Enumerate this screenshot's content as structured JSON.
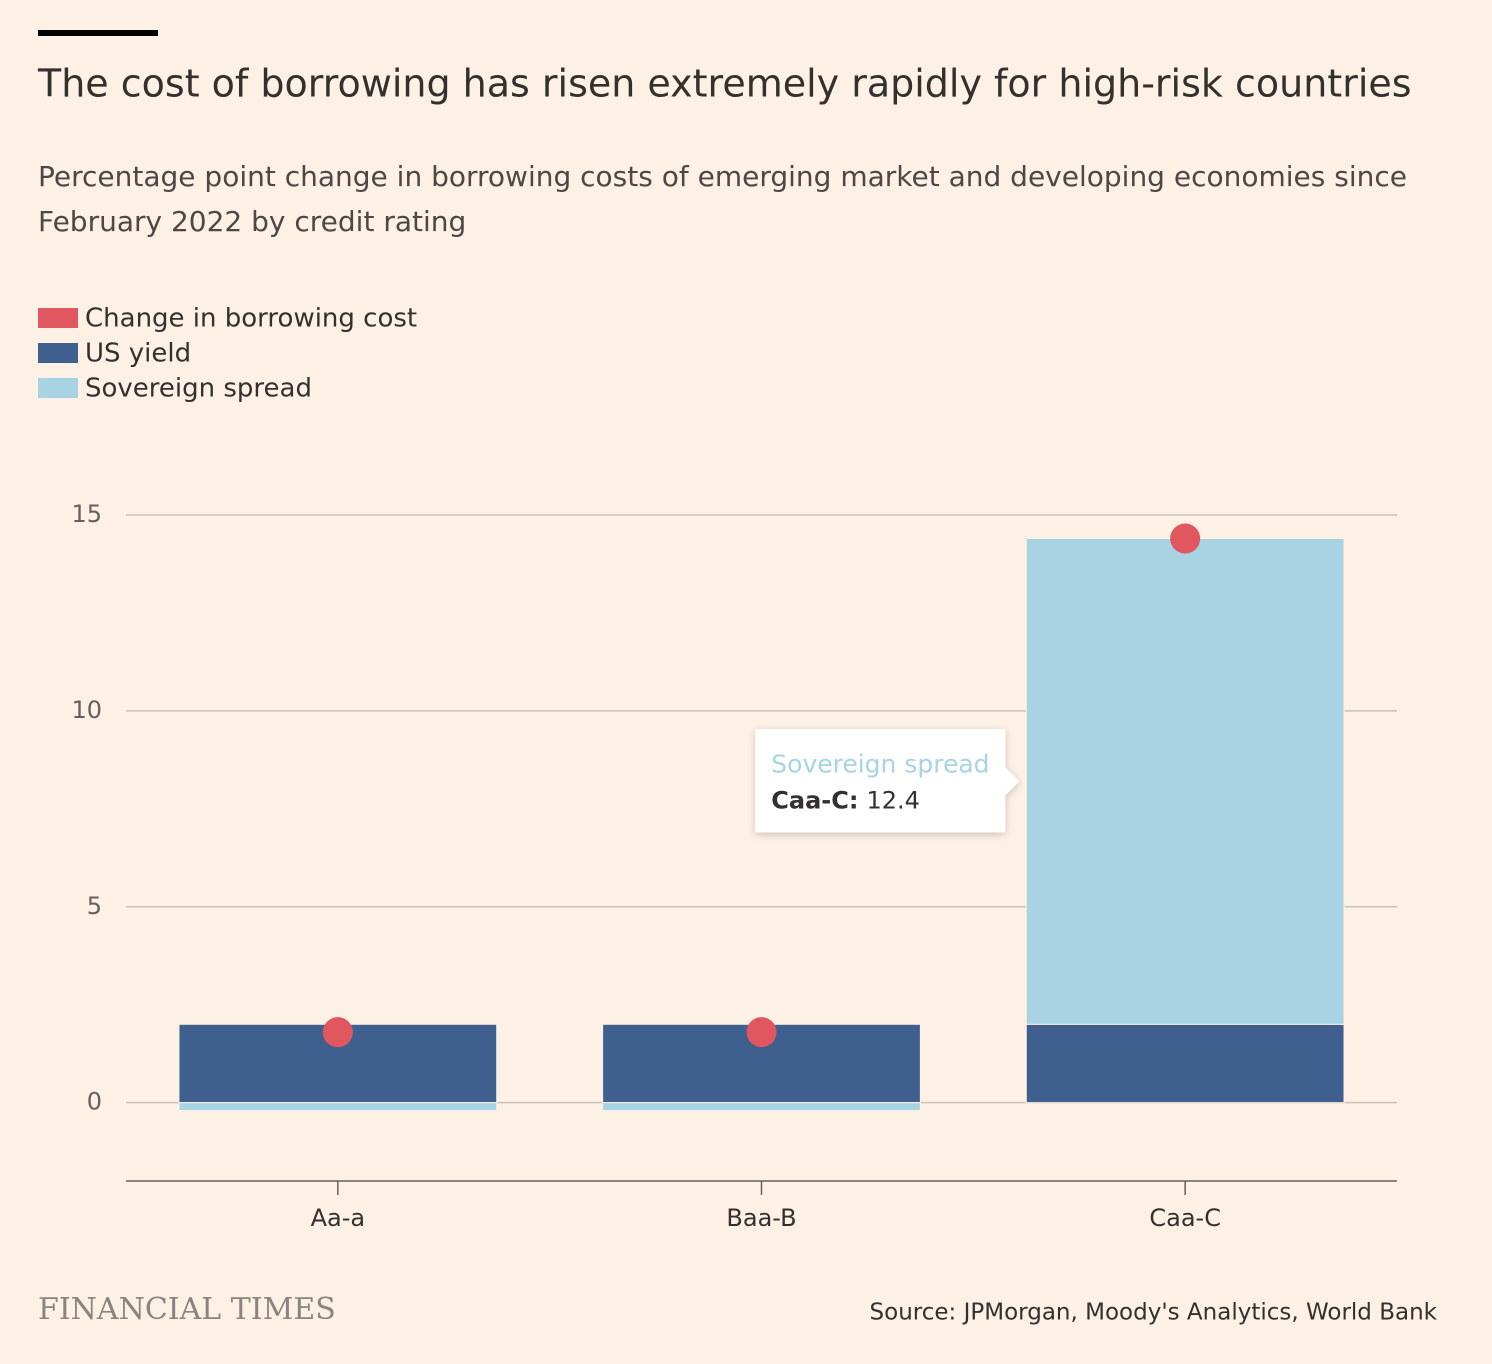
{
  "chart_data": {
    "type": "bar",
    "title": "The cost of borrowing has risen extremely rapidly for high-risk countries",
    "subtitle": [
      "Percentage point change in borrowing costs of emerging market and developing economies since",
      "February 2022 by credit rating"
    ],
    "categories": [
      "Aa-a",
      "Baa-B",
      "Caa-C"
    ],
    "series": [
      {
        "name": "Change in borrowing cost",
        "color": "#e0575f",
        "mark": "dot",
        "values": [
          1.8,
          1.8,
          14.4
        ]
      },
      {
        "name": "US yield",
        "color": "#3f5f8e",
        "values": [
          2.0,
          2.0,
          2.0
        ]
      },
      {
        "name": "Sovereign spread",
        "color": "#a7d3e3",
        "values": [
          -0.2,
          -0.2,
          12.4
        ]
      }
    ],
    "ylim": [
      -2,
      15
    ],
    "yticks": [
      0,
      5,
      10,
      15
    ],
    "grid": true,
    "legend": "top-left",
    "tooltip": {
      "label": "Caa-C:"
    },
    "brand": "FINANCIAL TIMES",
    "source": "Source: JPMorgan, Moody's Analytics, World Bank"
  }
}
